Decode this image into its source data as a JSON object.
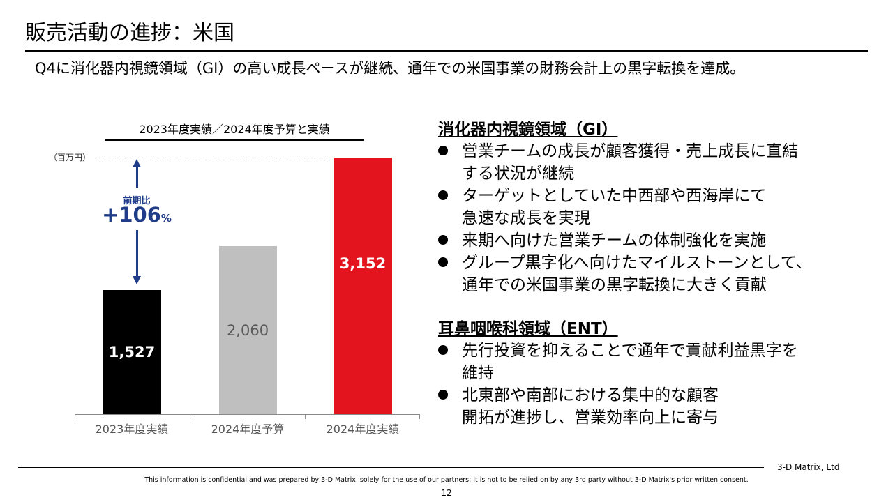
{
  "title": "販売活動の進捗：米国",
  "subtitle": "Q4に消化器内視鏡領域（GI）の高い成長ペースが継続、通年での米国事業の財務会計上の黒字転換を達成。",
  "chart": {
    "header": "2023年度実績／2024年度予算と実績",
    "unit": "（百万円）",
    "growth_label": "前期比",
    "growth_value": "+106",
    "growth_unit": "%"
  },
  "chart_data": {
    "type": "bar",
    "title": "2023年度実績／2024年度予算と実績",
    "ylabel": "（百万円）",
    "categories": [
      "2023年度実績",
      "2024年度予算",
      "2024年度実績"
    ],
    "values": [
      1527,
      2060,
      3152
    ],
    "value_labels": [
      "1,527",
      "2,060",
      "3,152"
    ],
    "colors": [
      "#000000",
      "#bfbfbf",
      "#e3141e"
    ],
    "label_colors": [
      "#ffffff",
      "#595959",
      "#ffffff"
    ],
    "annotation": "前期比 +106%",
    "ylim": [
      0,
      3152
    ]
  },
  "sections": [
    {
      "heading": "消化器内視鏡領域（GI）",
      "bullets": [
        "営業チームの成長が顧客獲得・売上成長に直結\nする状況が継続",
        "ターゲットとしていた中西部や西海岸にて\n急速な成長を実現",
        "来期へ向けた営業チームの体制強化を実施",
        "グループ黒字化へ向けたマイルストーンとして、\n通年での米国事業の黒字転換に大きく貢献"
      ]
    },
    {
      "heading": "耳鼻咽喉科領域（ENT）",
      "bullets": [
        "先行投資を抑えることで通年で貢献利益黒字を\n維持",
        "北東部や南部における集中的な顧客\n開拓が進捗し、営業効率向上に寄与"
      ]
    }
  ],
  "footer": {
    "company": "3-D Matrix, Ltd",
    "disclaimer": "This information is confidential and was prepared by 3-D Matrix, solely for the use of our partners; it is not to be relied on by any 3rd party without 3-D Matrix's prior written consent.",
    "page": "12"
  }
}
